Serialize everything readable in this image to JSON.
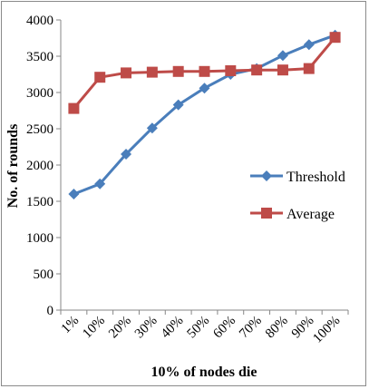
{
  "chart_data": {
    "type": "line",
    "title": "",
    "xlabel": "10% of nodes die",
    "ylabel": "No. of rounds",
    "categories": [
      "1%",
      "10%",
      "20%",
      "30%",
      "40%",
      "50%",
      "60%",
      "70%",
      "80%",
      "90%",
      "100%"
    ],
    "yticks": [
      "0",
      "500",
      "1000",
      "1500",
      "2000",
      "2500",
      "3000",
      "3500",
      "4000"
    ],
    "ylim": [
      0,
      4000
    ],
    "grid": false,
    "legend_position": "right",
    "series": [
      {
        "name": "Threshold",
        "color": "#4a7ebb",
        "marker": "diamond",
        "values": [
          1600,
          1740,
          2150,
          2510,
          2830,
          3060,
          3250,
          3330,
          3510,
          3660,
          3790
        ]
      },
      {
        "name": "Average",
        "color": "#be4b48",
        "marker": "square",
        "values": [
          2780,
          3210,
          3270,
          3280,
          3290,
          3290,
          3300,
          3310,
          3310,
          3330,
          3760
        ]
      }
    ]
  }
}
